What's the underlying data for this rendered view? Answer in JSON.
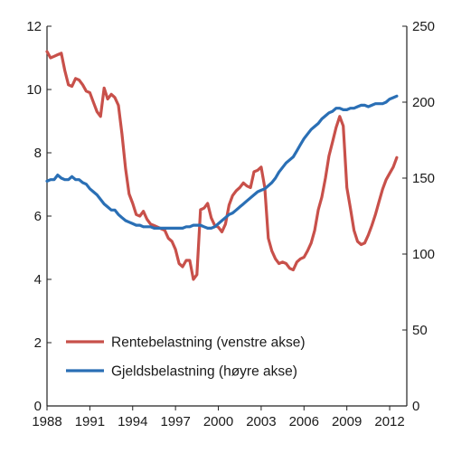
{
  "chart_data": {
    "type": "line",
    "x_ticks": [
      "1988",
      "1991",
      "1994",
      "1997",
      "2000",
      "2003",
      "2006",
      "2009",
      "2012"
    ],
    "x_range": [
      1988.0,
      2013.2
    ],
    "y_left": {
      "lim": [
        0,
        12
      ],
      "ticks": [
        "0",
        "2",
        "4",
        "6",
        "8",
        "10",
        "12"
      ]
    },
    "y_right": {
      "lim": [
        0,
        250
      ],
      "ticks": [
        "0",
        "50",
        "100",
        "150",
        "200",
        "250"
      ]
    },
    "grid": false,
    "legend_position": "lower-left inside plot",
    "series": [
      {
        "name": "Rentebelastning (venstre akse)",
        "axis": "left",
        "color": "#c8504a",
        "points": [
          [
            1988.0,
            11.2
          ],
          [
            1988.25,
            11.0
          ],
          [
            1988.5,
            11.05
          ],
          [
            1988.75,
            11.1
          ],
          [
            1989.0,
            11.15
          ],
          [
            1989.25,
            10.6
          ],
          [
            1989.5,
            10.15
          ],
          [
            1989.75,
            10.1
          ],
          [
            1990.0,
            10.35
          ],
          [
            1990.25,
            10.3
          ],
          [
            1990.5,
            10.15
          ],
          [
            1990.75,
            9.95
          ],
          [
            1991.0,
            9.9
          ],
          [
            1991.25,
            9.6
          ],
          [
            1991.5,
            9.3
          ],
          [
            1991.75,
            9.15
          ],
          [
            1992.0,
            10.05
          ],
          [
            1992.25,
            9.7
          ],
          [
            1992.5,
            9.85
          ],
          [
            1992.75,
            9.75
          ],
          [
            1993.0,
            9.5
          ],
          [
            1993.25,
            8.6
          ],
          [
            1993.5,
            7.5
          ],
          [
            1993.75,
            6.7
          ],
          [
            1994.0,
            6.4
          ],
          [
            1994.25,
            6.05
          ],
          [
            1994.5,
            6.0
          ],
          [
            1994.75,
            6.15
          ],
          [
            1995.0,
            5.9
          ],
          [
            1995.25,
            5.75
          ],
          [
            1995.5,
            5.7
          ],
          [
            1995.75,
            5.65
          ],
          [
            1996.0,
            5.6
          ],
          [
            1996.25,
            5.55
          ],
          [
            1996.5,
            5.3
          ],
          [
            1996.75,
            5.2
          ],
          [
            1997.0,
            4.95
          ],
          [
            1997.25,
            4.5
          ],
          [
            1997.5,
            4.4
          ],
          [
            1997.75,
            4.6
          ],
          [
            1998.0,
            4.6
          ],
          [
            1998.25,
            4.0
          ],
          [
            1998.5,
            4.15
          ],
          [
            1998.75,
            6.2
          ],
          [
            1999.0,
            6.25
          ],
          [
            1999.25,
            6.4
          ],
          [
            1999.5,
            5.95
          ],
          [
            1999.75,
            5.7
          ],
          [
            2000.0,
            5.65
          ],
          [
            2000.25,
            5.5
          ],
          [
            2000.5,
            5.75
          ],
          [
            2000.75,
            6.35
          ],
          [
            2001.0,
            6.65
          ],
          [
            2001.25,
            6.8
          ],
          [
            2001.5,
            6.9
          ],
          [
            2001.75,
            7.05
          ],
          [
            2002.0,
            6.95
          ],
          [
            2002.25,
            6.9
          ],
          [
            2002.5,
            7.4
          ],
          [
            2002.75,
            7.45
          ],
          [
            2003.0,
            7.55
          ],
          [
            2003.25,
            6.9
          ],
          [
            2003.5,
            5.3
          ],
          [
            2003.75,
            4.9
          ],
          [
            2004.0,
            4.65
          ],
          [
            2004.25,
            4.5
          ],
          [
            2004.5,
            4.55
          ],
          [
            2004.75,
            4.5
          ],
          [
            2005.0,
            4.35
          ],
          [
            2005.25,
            4.3
          ],
          [
            2005.5,
            4.55
          ],
          [
            2005.75,
            4.65
          ],
          [
            2006.0,
            4.7
          ],
          [
            2006.25,
            4.9
          ],
          [
            2006.5,
            5.15
          ],
          [
            2006.75,
            5.55
          ],
          [
            2007.0,
            6.2
          ],
          [
            2007.25,
            6.6
          ],
          [
            2007.5,
            7.2
          ],
          [
            2007.75,
            7.9
          ],
          [
            2008.0,
            8.35
          ],
          [
            2008.25,
            8.8
          ],
          [
            2008.5,
            9.15
          ],
          [
            2008.75,
            8.85
          ],
          [
            2009.0,
            6.9
          ],
          [
            2009.25,
            6.25
          ],
          [
            2009.5,
            5.55
          ],
          [
            2009.75,
            5.2
          ],
          [
            2010.0,
            5.1
          ],
          [
            2010.25,
            5.15
          ],
          [
            2010.5,
            5.4
          ],
          [
            2010.75,
            5.7
          ],
          [
            2011.0,
            6.05
          ],
          [
            2011.25,
            6.45
          ],
          [
            2011.5,
            6.85
          ],
          [
            2011.75,
            7.15
          ],
          [
            2012.0,
            7.35
          ],
          [
            2012.25,
            7.55
          ],
          [
            2012.5,
            7.85
          ]
        ]
      },
      {
        "name": "Gjeldsbelastning (høyre akse)",
        "axis": "right",
        "color": "#2a6fb5",
        "points": [
          [
            1988.0,
            148
          ],
          [
            1988.25,
            149
          ],
          [
            1988.5,
            149
          ],
          [
            1988.75,
            152
          ],
          [
            1989.0,
            150
          ],
          [
            1989.25,
            149
          ],
          [
            1989.5,
            149
          ],
          [
            1989.75,
            151
          ],
          [
            1990.0,
            149
          ],
          [
            1990.25,
            149
          ],
          [
            1990.5,
            147
          ],
          [
            1990.75,
            146
          ],
          [
            1991.0,
            143
          ],
          [
            1991.25,
            141
          ],
          [
            1991.5,
            139
          ],
          [
            1991.75,
            136
          ],
          [
            1992.0,
            133
          ],
          [
            1992.25,
            131
          ],
          [
            1992.5,
            129
          ],
          [
            1992.75,
            129
          ],
          [
            1993.0,
            126
          ],
          [
            1993.25,
            124
          ],
          [
            1993.5,
            122
          ],
          [
            1993.75,
            121
          ],
          [
            1994.0,
            120
          ],
          [
            1994.25,
            119
          ],
          [
            1994.5,
            119
          ],
          [
            1994.75,
            118
          ],
          [
            1995.0,
            118
          ],
          [
            1995.25,
            118
          ],
          [
            1995.5,
            117
          ],
          [
            1995.75,
            117
          ],
          [
            1996.0,
            117
          ],
          [
            1996.25,
            117
          ],
          [
            1996.5,
            117
          ],
          [
            1996.75,
            117
          ],
          [
            1997.0,
            117
          ],
          [
            1997.25,
            117
          ],
          [
            1997.5,
            117
          ],
          [
            1997.75,
            118
          ],
          [
            1998.0,
            118
          ],
          [
            1998.25,
            119
          ],
          [
            1998.5,
            119
          ],
          [
            1998.75,
            119
          ],
          [
            1999.0,
            118
          ],
          [
            1999.25,
            117
          ],
          [
            1999.5,
            117
          ],
          [
            1999.75,
            118
          ],
          [
            2000.0,
            120
          ],
          [
            2000.25,
            122
          ],
          [
            2000.5,
            124
          ],
          [
            2000.75,
            126
          ],
          [
            2001.0,
            127
          ],
          [
            2001.25,
            129
          ],
          [
            2001.5,
            131
          ],
          [
            2001.75,
            133
          ],
          [
            2002.0,
            135
          ],
          [
            2002.25,
            137
          ],
          [
            2002.5,
            139
          ],
          [
            2002.75,
            141
          ],
          [
            2003.0,
            142
          ],
          [
            2003.25,
            143
          ],
          [
            2003.5,
            145
          ],
          [
            2003.75,
            147
          ],
          [
            2004.0,
            150
          ],
          [
            2004.25,
            154
          ],
          [
            2004.5,
            157
          ],
          [
            2004.75,
            160
          ],
          [
            2005.0,
            162
          ],
          [
            2005.25,
            164
          ],
          [
            2005.5,
            168
          ],
          [
            2005.75,
            172
          ],
          [
            2006.0,
            176
          ],
          [
            2006.25,
            179
          ],
          [
            2006.5,
            182
          ],
          [
            2006.75,
            184
          ],
          [
            2007.0,
            186
          ],
          [
            2007.25,
            189
          ],
          [
            2007.5,
            191
          ],
          [
            2007.75,
            193
          ],
          [
            2008.0,
            194
          ],
          [
            2008.25,
            196
          ],
          [
            2008.5,
            196
          ],
          [
            2008.75,
            195
          ],
          [
            2009.0,
            195
          ],
          [
            2009.25,
            196
          ],
          [
            2009.5,
            196
          ],
          [
            2009.75,
            197
          ],
          [
            2010.0,
            198
          ],
          [
            2010.25,
            198
          ],
          [
            2010.5,
            197
          ],
          [
            2010.75,
            198
          ],
          [
            2011.0,
            199
          ],
          [
            2011.25,
            199
          ],
          [
            2011.5,
            199
          ],
          [
            2011.75,
            200
          ],
          [
            2012.0,
            202
          ],
          [
            2012.25,
            203
          ],
          [
            2012.5,
            204
          ]
        ]
      }
    ]
  }
}
